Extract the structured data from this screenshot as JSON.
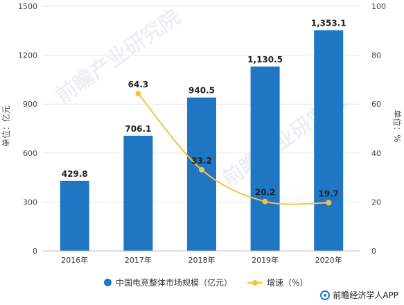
{
  "chart_data": {
    "type": "bar",
    "categories": [
      "2016年",
      "2017年",
      "2018年",
      "2019年",
      "2020年"
    ],
    "series": [
      {
        "name": "中国电竞整体市场规模（亿元）",
        "type": "bar",
        "axis": "left",
        "values": [
          429.8,
          706.1,
          940.5,
          1130.5,
          1353.1
        ],
        "labels": [
          "429.8",
          "706.1",
          "940.5",
          "1,130.5",
          "1,353.1"
        ],
        "color": "#1f77c4"
      },
      {
        "name": "增速（%）",
        "type": "line",
        "axis": "right",
        "values": [
          null,
          64.3,
          33.2,
          20.2,
          19.7
        ],
        "labels": [
          "",
          "64.3",
          "33.2",
          "20.2",
          "19.7"
        ],
        "color": "#f5c344"
      }
    ],
    "ylabel": "单位：亿元",
    "y2label": "单位：%",
    "ylim": [
      0,
      1500
    ],
    "y2lim": [
      0,
      100
    ],
    "yticks": [
      "0",
      "300",
      "600",
      "900",
      "1200",
      "1500"
    ],
    "y2ticks": [
      "0",
      "20",
      "40",
      "60",
      "80",
      "100"
    ],
    "grid": true,
    "legend_position": "bottom"
  },
  "watermark": "前瞻产业研究院",
  "brand": "前瞻经济学人APP"
}
